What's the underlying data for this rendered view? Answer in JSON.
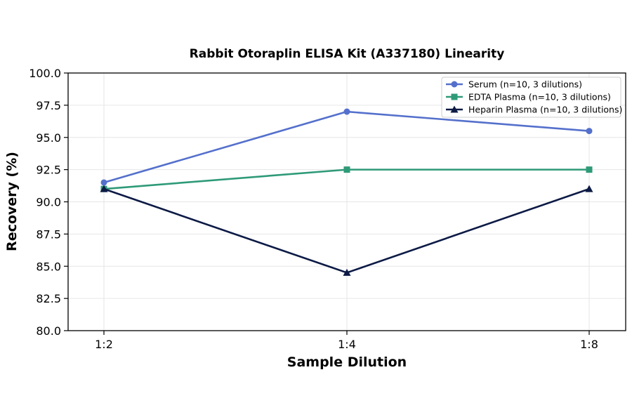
{
  "chart_data": {
    "type": "line",
    "title": "Rabbit Otoraplin ELISA Kit (A337180) Linearity",
    "xlabel": "Sample Dilution",
    "ylabel": "Recovery (%)",
    "categories": [
      "1:2",
      "1:4",
      "1:8"
    ],
    "ylim": [
      80.0,
      100.0
    ],
    "yticks": [
      "80.0",
      "82.5",
      "85.0",
      "87.5",
      "90.0",
      "92.5",
      "95.0",
      "97.5",
      "100.0"
    ],
    "grid": true,
    "legend_position": "top-right",
    "series": [
      {
        "name": "Serum (n=10, 3 dilutions)",
        "values": [
          91.5,
          97.0,
          95.5
        ],
        "color": "#5470cc",
        "marker": "circle"
      },
      {
        "name": "EDTA Plasma (n=10, 3 dilutions)",
        "values": [
          91.0,
          92.5,
          92.5
        ],
        "color": "#2e9a78",
        "marker": "square"
      },
      {
        "name": "Heparin Plasma (n=10, 3 dilutions)",
        "values": [
          91.0,
          84.5,
          91.0
        ],
        "color": "#0c1a45",
        "marker": "triangle"
      }
    ]
  }
}
